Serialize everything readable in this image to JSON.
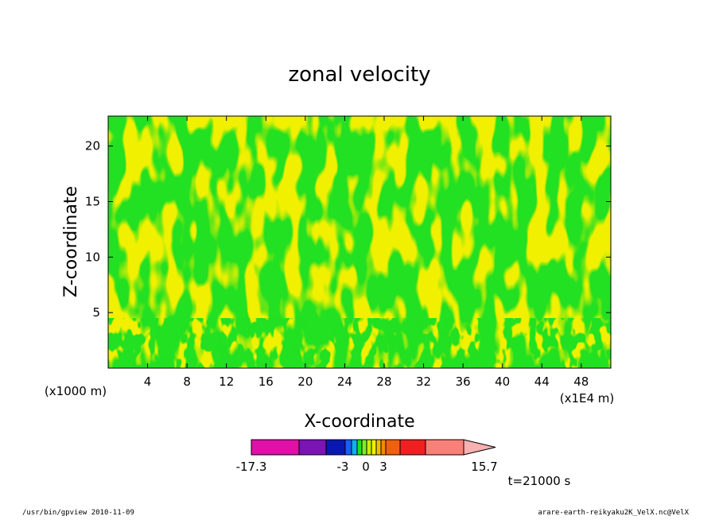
{
  "chart_data": {
    "type": "contour",
    "title": "zonal velocity",
    "xlabel": "X-coordinate",
    "ylabel": "Z-coordinate",
    "x_scale_label": "(x1000 m)",
    "x_units_right": "(x1E4 m)",
    "xlim": [
      0,
      51
    ],
    "ylim": [
      0,
      22.7
    ],
    "x_ticks": [
      4,
      8,
      12,
      16,
      20,
      24,
      28,
      32,
      36,
      40,
      44,
      48
    ],
    "y_ticks": [
      5,
      10,
      15,
      20
    ],
    "colorbar": {
      "colors": [
        "#e010a8",
        "#7a14b4",
        "#0818b0",
        "#1860f0",
        "#10b0f0",
        "#20e020",
        "#80ee20",
        "#ccee00",
        "#f0f000",
        "#f0c000",
        "#f08c00",
        "#f06010",
        "#f02020",
        "#f88078",
        "#f8b0b0"
      ],
      "labels": [
        "-17.3",
        "-3",
        "0",
        "3",
        "15.7"
      ]
    },
    "dominant_fill": {
      "negative_small": "#20e020",
      "positive_small": "#f0f000"
    },
    "time_label": "t=21000 s"
  },
  "footer": {
    "left": "/usr/bin/gpview   2010-11-09",
    "right": "arare-earth-reikyaku2K_VelX.nc@VelX"
  }
}
